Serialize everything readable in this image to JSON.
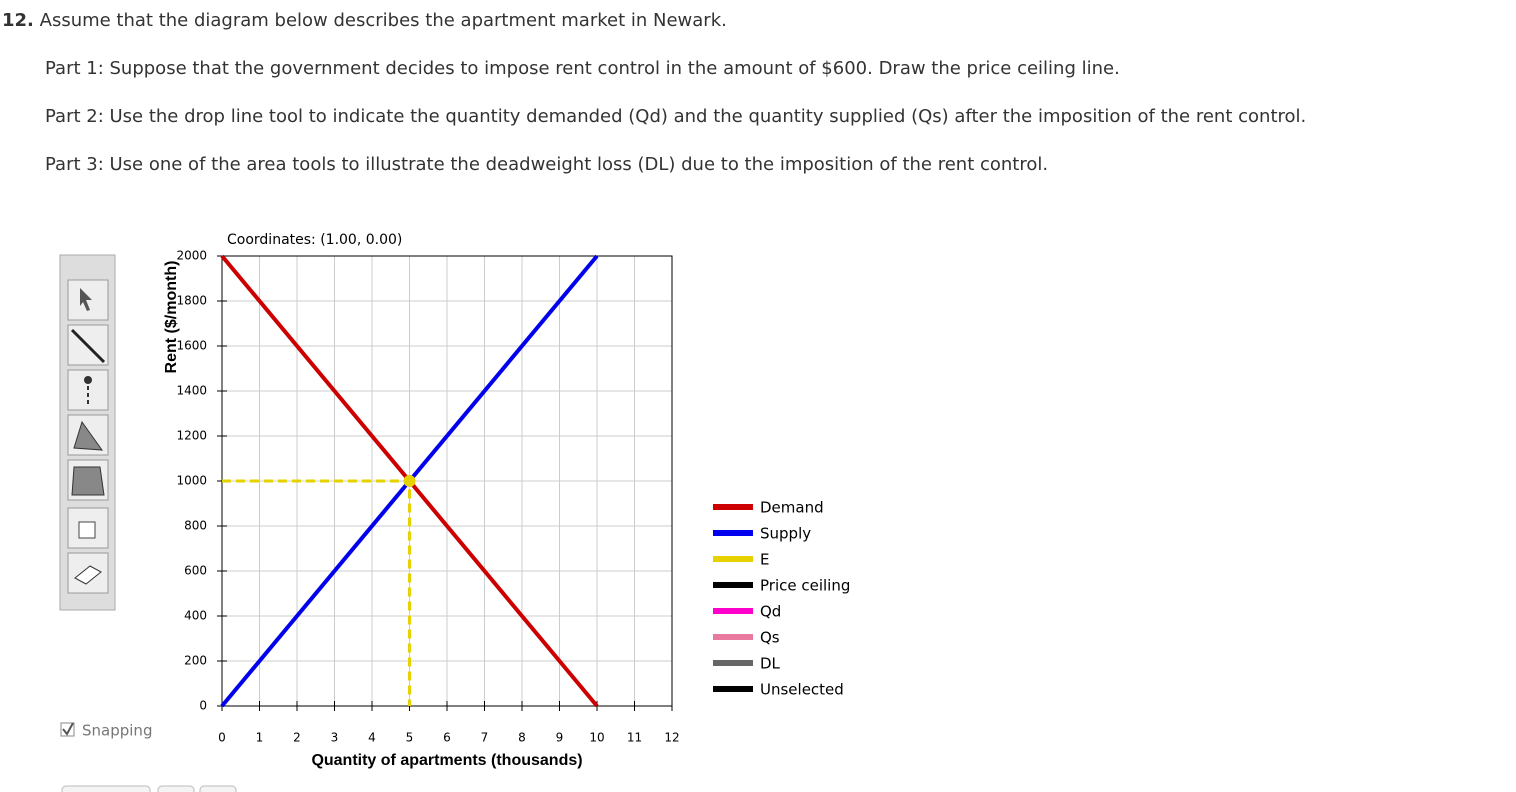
{
  "question": {
    "number": "12.",
    "text": "Assume that the diagram below describes the apartment market in Newark.",
    "parts": [
      "Part 1: Suppose that the government decides to impose rent control in the amount of $600. Draw the price ceiling line.",
      "Part 2: Use the drop line tool to indicate the quantity demanded (Qd) and the quantity supplied (Qs) after the imposition of the rent control.",
      "Part 3: Use one of the area tools to illustrate the deadweight loss (DL) due to the imposition of the rent control."
    ]
  },
  "coordinates": "Coordinates: (1.00, 0.00)",
  "snapping": "Snapping",
  "chart_data": {
    "type": "line",
    "x_label": "Quantity of apartments (thousands)",
    "y_label": "Rent ($/month)",
    "xlim": [
      0,
      12
    ],
    "xticks": [
      0,
      1,
      2,
      3,
      4,
      5,
      6,
      7,
      8,
      9,
      10,
      11,
      12
    ],
    "ylim": [
      0,
      2000
    ],
    "yticks": [
      0,
      200,
      400,
      600,
      800,
      1000,
      1200,
      1400,
      1600,
      1800,
      2000
    ],
    "grid": true,
    "series": [
      {
        "name": "Demand",
        "color": "#cc0000",
        "x": [
          0,
          10
        ],
        "values": [
          2000,
          0
        ]
      },
      {
        "name": "Supply",
        "color": "#0000ee",
        "x": [
          0,
          10
        ],
        "values": [
          0,
          2000
        ]
      },
      {
        "name": "E",
        "color": "#e6d200",
        "dashed": true,
        "x": [
          0,
          5,
          5
        ],
        "values": [
          1000,
          1000,
          0
        ]
      },
      {
        "name": "Price ceiling",
        "color": "#000000",
        "x": [],
        "values": []
      },
      {
        "name": "Qd",
        "color": "#ff00cc",
        "x": [],
        "values": []
      },
      {
        "name": "Qs",
        "color": "#e87aa0",
        "x": [],
        "values": []
      },
      {
        "name": "DL",
        "color": "#666666",
        "x": [],
        "values": []
      },
      {
        "name": "Unselected",
        "color": "#000000",
        "x": [],
        "values": []
      }
    ]
  }
}
